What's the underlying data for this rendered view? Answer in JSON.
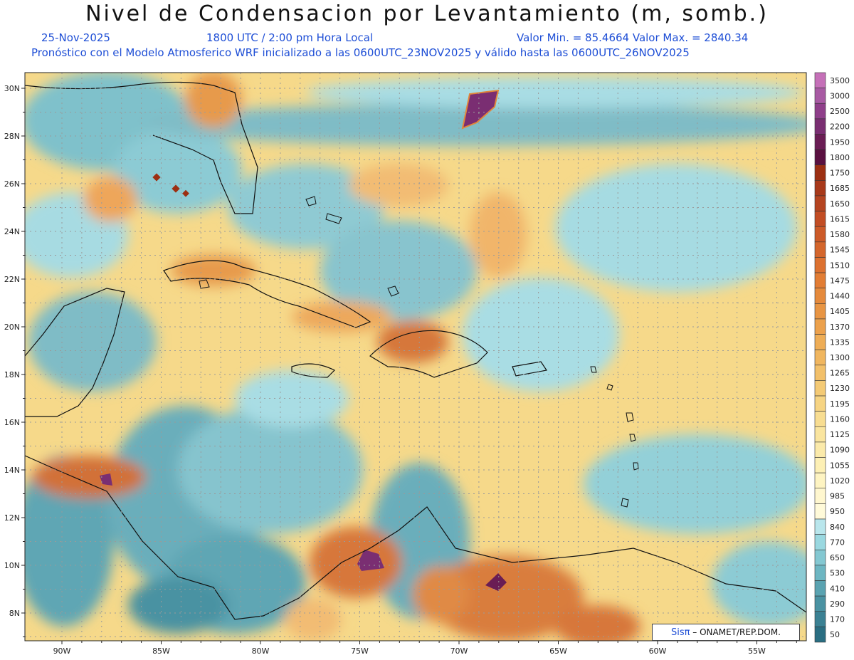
{
  "header": {
    "title": "Nivel de Condensacion por Levantamiento (m, somb.)",
    "date": "25-Nov-2025",
    "time": "1800 UTC / 2:00 pm Hora Local",
    "minmax": "Valor Min. = 85.4664   Valor Max. = 2840.34",
    "forecast": "Pronóstico con el Modelo Atmosferico WRF inicializado a las 0600UTC_23NOV2025 y válido hasta las  0600UTC_26NOV2025"
  },
  "map": {
    "lon_ticks": [
      "90W",
      "85W",
      "80W",
      "75W",
      "70W",
      "65W",
      "60W",
      "55W"
    ],
    "lat_ticks": [
      "30N",
      "28N",
      "26N",
      "24N",
      "22N",
      "20N",
      "18N",
      "16N",
      "14N",
      "12N",
      "10N",
      "8N"
    ]
  },
  "legend": {
    "levels": [
      "3500",
      "3000",
      "2500",
      "2200",
      "1950",
      "1800",
      "1750",
      "1685",
      "1650",
      "1615",
      "1580",
      "1545",
      "1510",
      "1475",
      "1440",
      "1405",
      "1370",
      "1335",
      "1300",
      "1265",
      "1230",
      "1195",
      "1160",
      "1125",
      "1090",
      "1055",
      "1020",
      "985",
      "950",
      "840",
      "770",
      "650",
      "530",
      "410",
      "290",
      "170",
      "50"
    ],
    "colors": [
      "#c570b8",
      "#a85aa3",
      "#8f3f8a",
      "#7a2e72",
      "#6a1d54",
      "#5a1040",
      "#9c2f12",
      "#a8391a",
      "#b54420",
      "#c24d24",
      "#cc5a28",
      "#d4662c",
      "#dc7130",
      "#e27d34",
      "#e58a3c",
      "#e89543",
      "#eca14c",
      "#eead56",
      "#f0b65f",
      "#f2c06a",
      "#f4ca75",
      "#f6d483",
      "#f8dd91",
      "#fae59f",
      "#fbeaaa",
      "#fdf0b5",
      "#fef4c2",
      "#fff7cf",
      "#fffad9",
      "#b9e6ec",
      "#9ad8e0",
      "#84c8d2",
      "#6db6c2",
      "#5aa3b1",
      "#4a92a2",
      "#3b8193",
      "#2a6e82"
    ]
  },
  "credit": {
    "brand": "Sisπ",
    "text": "– ONAMET/REP.DOM."
  }
}
